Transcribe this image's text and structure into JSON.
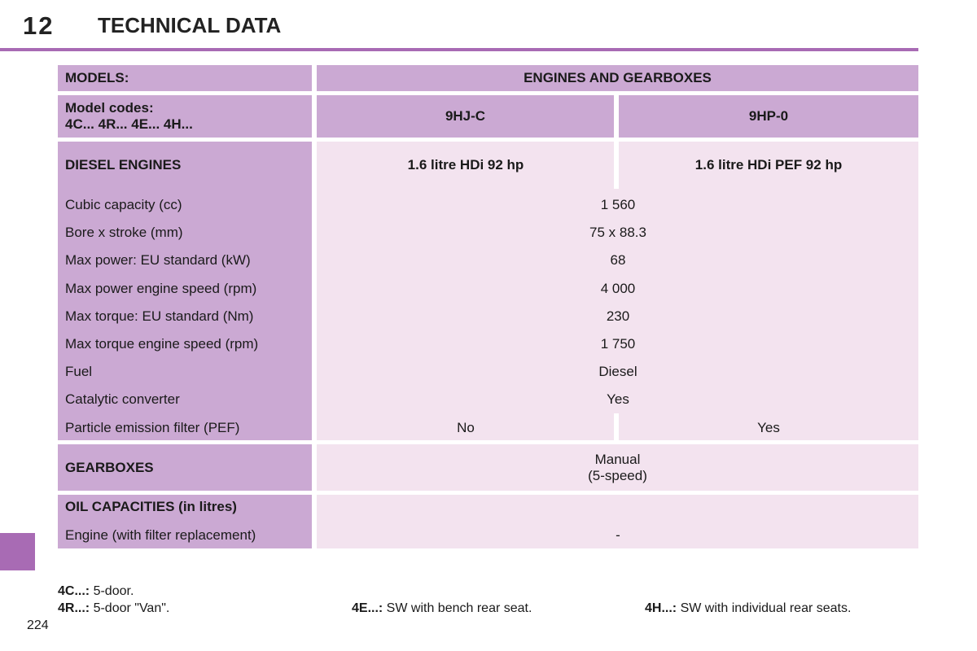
{
  "header": {
    "chapter": "12",
    "title": "TECHNICAL DATA"
  },
  "table": {
    "models_label": "MODELS:",
    "engines_header": "ENGINES AND GEARBOXES",
    "model_codes_label": "Model codes:",
    "model_codes_values": "4C... 4R... 4E... 4H...",
    "engine_codes": [
      "9HJ-C",
      "9HP-0"
    ],
    "diesel_section": "DIESEL ENGINES",
    "engine_names": [
      "1.6 litre HDi 92 hp",
      "1.6 litre HDi PEF 92 hp"
    ],
    "specs": [
      {
        "label": "Cubic capacity (cc)",
        "value": "1 560"
      },
      {
        "label": "Bore x stroke (mm)",
        "value": "75 x 88.3"
      },
      {
        "label": "Max power: EU standard (kW)",
        "value": "68"
      },
      {
        "label": "Max power engine speed (rpm)",
        "value": "4 000"
      },
      {
        "label": "Max torque: EU standard (Nm)",
        "value": "230"
      },
      {
        "label": "Max torque engine speed (rpm)",
        "value": "1 750"
      },
      {
        "label": "Fuel",
        "value": "Diesel"
      },
      {
        "label": "Catalytic converter",
        "value": "Yes"
      }
    ],
    "pef": {
      "label": "Particle emission filter (PEF)",
      "values": [
        "No",
        "Yes"
      ]
    },
    "gearboxes": {
      "label": "GEARBOXES",
      "line1": "Manual",
      "line2": "(5-speed)"
    },
    "oil": {
      "label": "OIL CAPACITIES (in litres)",
      "row_label": "Engine (with filter replacement)",
      "value": "-"
    }
  },
  "footnotes": [
    {
      "code": "4C...:",
      "text": " 5-door."
    },
    {
      "code": "4R...:",
      "text": " 5-door \"Van\"."
    },
    {
      "code": "4E...:",
      "text": " SW with bench rear seat."
    },
    {
      "code": "4H...:",
      "text": " SW with individual rear seats."
    }
  ],
  "page_number": "224",
  "colors": {
    "accent": "#a86bb4",
    "header_cell": "#cba9d3",
    "body_cell": "#f3e3ef"
  }
}
